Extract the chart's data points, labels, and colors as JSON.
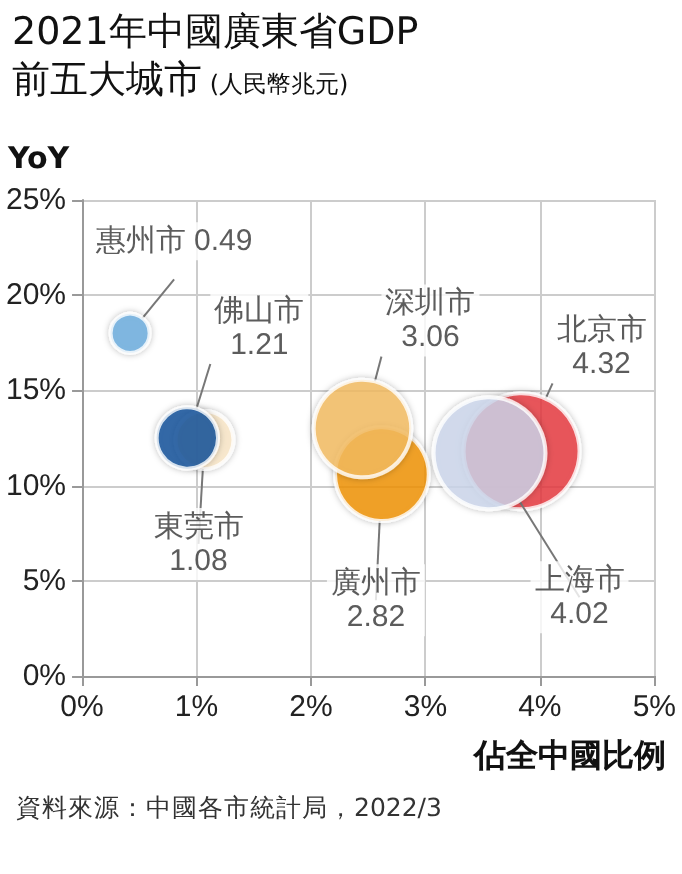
{
  "chart_data": {
    "type": "bubble",
    "title": "2021年中國廣東省GDP\n前五大城市",
    "subtitle": "(人民幣兆元)",
    "ylabel": "YoY",
    "xlabel": "佔全中國比例",
    "xlim": [
      0,
      5
    ],
    "xticks": [
      {
        "value": 0,
        "label": "0%"
      },
      {
        "value": 1,
        "label": "1%"
      },
      {
        "value": 2,
        "label": "2%"
      },
      {
        "value": 3,
        "label": "3%"
      },
      {
        "value": 4,
        "label": "4%"
      },
      {
        "value": 5,
        "label": "5%"
      }
    ],
    "ylim": [
      0,
      25
    ],
    "yticks": [
      {
        "value": 0,
        "label": "0%"
      },
      {
        "value": 5,
        "label": "5%"
      },
      {
        "value": 10,
        "label": "10%"
      },
      {
        "value": 15,
        "label": "15%"
      },
      {
        "value": 20,
        "label": "20%"
      },
      {
        "value": 25,
        "label": "25%"
      }
    ],
    "grid": true,
    "legend": false,
    "marker": "circle",
    "series": [
      {
        "name": "惠州市",
        "color": "#6aaee0",
        "x": [
          0.42
        ],
        "values": [
          18.0
        ],
        "sizes": [
          0.49
        ],
        "value_labels": [
          "0.49"
        ]
      },
      {
        "name": "東莞市",
        "color": "#fde9c8",
        "x": [
          1.07
        ],
        "values": [
          12.4
        ],
        "sizes": [
          1.08
        ],
        "value_labels": [
          "1.08"
        ]
      },
      {
        "name": "佛山市",
        "color": "#0b4f9a",
        "x": [
          0.92
        ],
        "values": [
          12.5
        ],
        "sizes": [
          1.21
        ],
        "value_labels": [
          "1.21"
        ]
      },
      {
        "name": "廣州市",
        "color": "#f39200",
        "x": [
          2.62
        ],
        "values": [
          10.6
        ],
        "sizes": [
          2.82
        ],
        "value_labels": [
          "2.82"
        ]
      },
      {
        "name": "深圳市",
        "color": "#f6bd60",
        "x": [
          2.45
        ],
        "values": [
          13.0
        ],
        "sizes": [
          3.06
        ],
        "value_labels": [
          "3.06"
        ]
      },
      {
        "name": "北京市",
        "color": "#e8373e",
        "x": [
          3.84
        ],
        "values": [
          11.8
        ],
        "sizes": [
          4.32
        ],
        "value_labels": [
          "4.32"
        ]
      },
      {
        "name": "上海市",
        "color": "#cdd8ee",
        "x": [
          3.56
        ],
        "values": [
          11.7
        ],
        "sizes": [
          4.02
        ],
        "value_labels": [
          "4.02"
        ]
      }
    ],
    "annotations": [
      "資料來源：中國各市統計局，2022/3"
    ]
  }
}
